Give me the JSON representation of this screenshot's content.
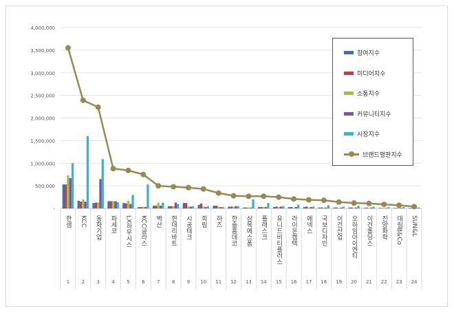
{
  "chart_data": {
    "type": "bar+line",
    "categories": [
      "한샘",
      "KCC",
      "동화기업",
      "파세코",
      "LX하우시스",
      "KCC글라스",
      "벽산",
      "현대리바트",
      "시공테크",
      "희림",
      "하츠",
      "한솔홈데코",
      "삼목에스폼",
      "플래스크",
      "유니드비티플러스",
      "라이온켐텍",
      "에넥스",
      "국보디자인",
      "이건산업",
      "오하임아이엔티",
      "이건홀딩스",
      "진양화학",
      "대림B&Co",
      "SUN&L"
    ],
    "ranks": [
      "1",
      "2",
      "3",
      "4",
      "5",
      "6",
      "7",
      "8",
      "9",
      "10",
      "11",
      "12",
      "13",
      "14",
      "15",
      "16",
      "17",
      "18",
      "19",
      "20",
      "21",
      "22",
      "23",
      "24"
    ],
    "ylim": [
      0,
      4000000
    ],
    "yticks": [
      "-",
      "500,000",
      "1,000,000",
      "1,500,000",
      "2,000,000",
      "2,500,000",
      "3,000,000",
      "3,500,000",
      "4,000,000"
    ],
    "grid": true,
    "legend_position": "right",
    "series": [
      {
        "name": "참여지수",
        "type": "bar",
        "color": "#3f6fb0",
        "values": [
          530000,
          170000,
          120000,
          160000,
          120000,
          30000,
          60000,
          50000,
          120000,
          80000,
          60000,
          40000,
          20000,
          30000,
          30000,
          30000,
          30000,
          20000,
          20000,
          20000,
          10000,
          10000,
          10000,
          10000
        ]
      },
      {
        "name": "미디어지수",
        "type": "bar",
        "color": "#c0404a",
        "values": [
          530000,
          150000,
          130000,
          160000,
          110000,
          30000,
          60000,
          50000,
          120000,
          110000,
          60000,
          40000,
          20000,
          30000,
          40000,
          30000,
          40000,
          20000,
          20000,
          20000,
          20000,
          10000,
          10000,
          10000
        ]
      },
      {
        "name": "소통지수",
        "type": "bar",
        "color": "#9bc04c",
        "values": [
          730000,
          200000,
          130000,
          160000,
          170000,
          40000,
          130000,
          50000,
          40000,
          40000,
          40000,
          40000,
          20000,
          30000,
          30000,
          20000,
          20000,
          20000,
          10000,
          10000,
          10000,
          10000,
          10000,
          10000
        ]
      },
      {
        "name": "커뮤니티지수",
        "type": "bar",
        "color": "#7a55a0",
        "values": [
          670000,
          150000,
          650000,
          160000,
          100000,
          30000,
          60000,
          130000,
          40000,
          30000,
          30000,
          50000,
          20000,
          30000,
          40000,
          30000,
          30000,
          20000,
          20000,
          20000,
          20000,
          10000,
          10000,
          10000
        ]
      },
      {
        "name": "시장지수",
        "type": "bar",
        "color": "#3fb0cf",
        "values": [
          1000000,
          1600000,
          1090000,
          140000,
          300000,
          530000,
          130000,
          100000,
          50000,
          50000,
          30000,
          50000,
          200000,
          120000,
          50000,
          80000,
          40000,
          70000,
          40000,
          60000,
          40000,
          30000,
          30000,
          20000
        ]
      },
      {
        "name": "브랜드평판지수",
        "type": "line",
        "color": "#948a54",
        "values": [
          3550000,
          2390000,
          2240000,
          880000,
          840000,
          750000,
          500000,
          480000,
          460000,
          430000,
          340000,
          280000,
          270000,
          270000,
          250000,
          210000,
          190000,
          180000,
          140000,
          120000,
          110000,
          90000,
          70000,
          40000
        ]
      }
    ]
  }
}
